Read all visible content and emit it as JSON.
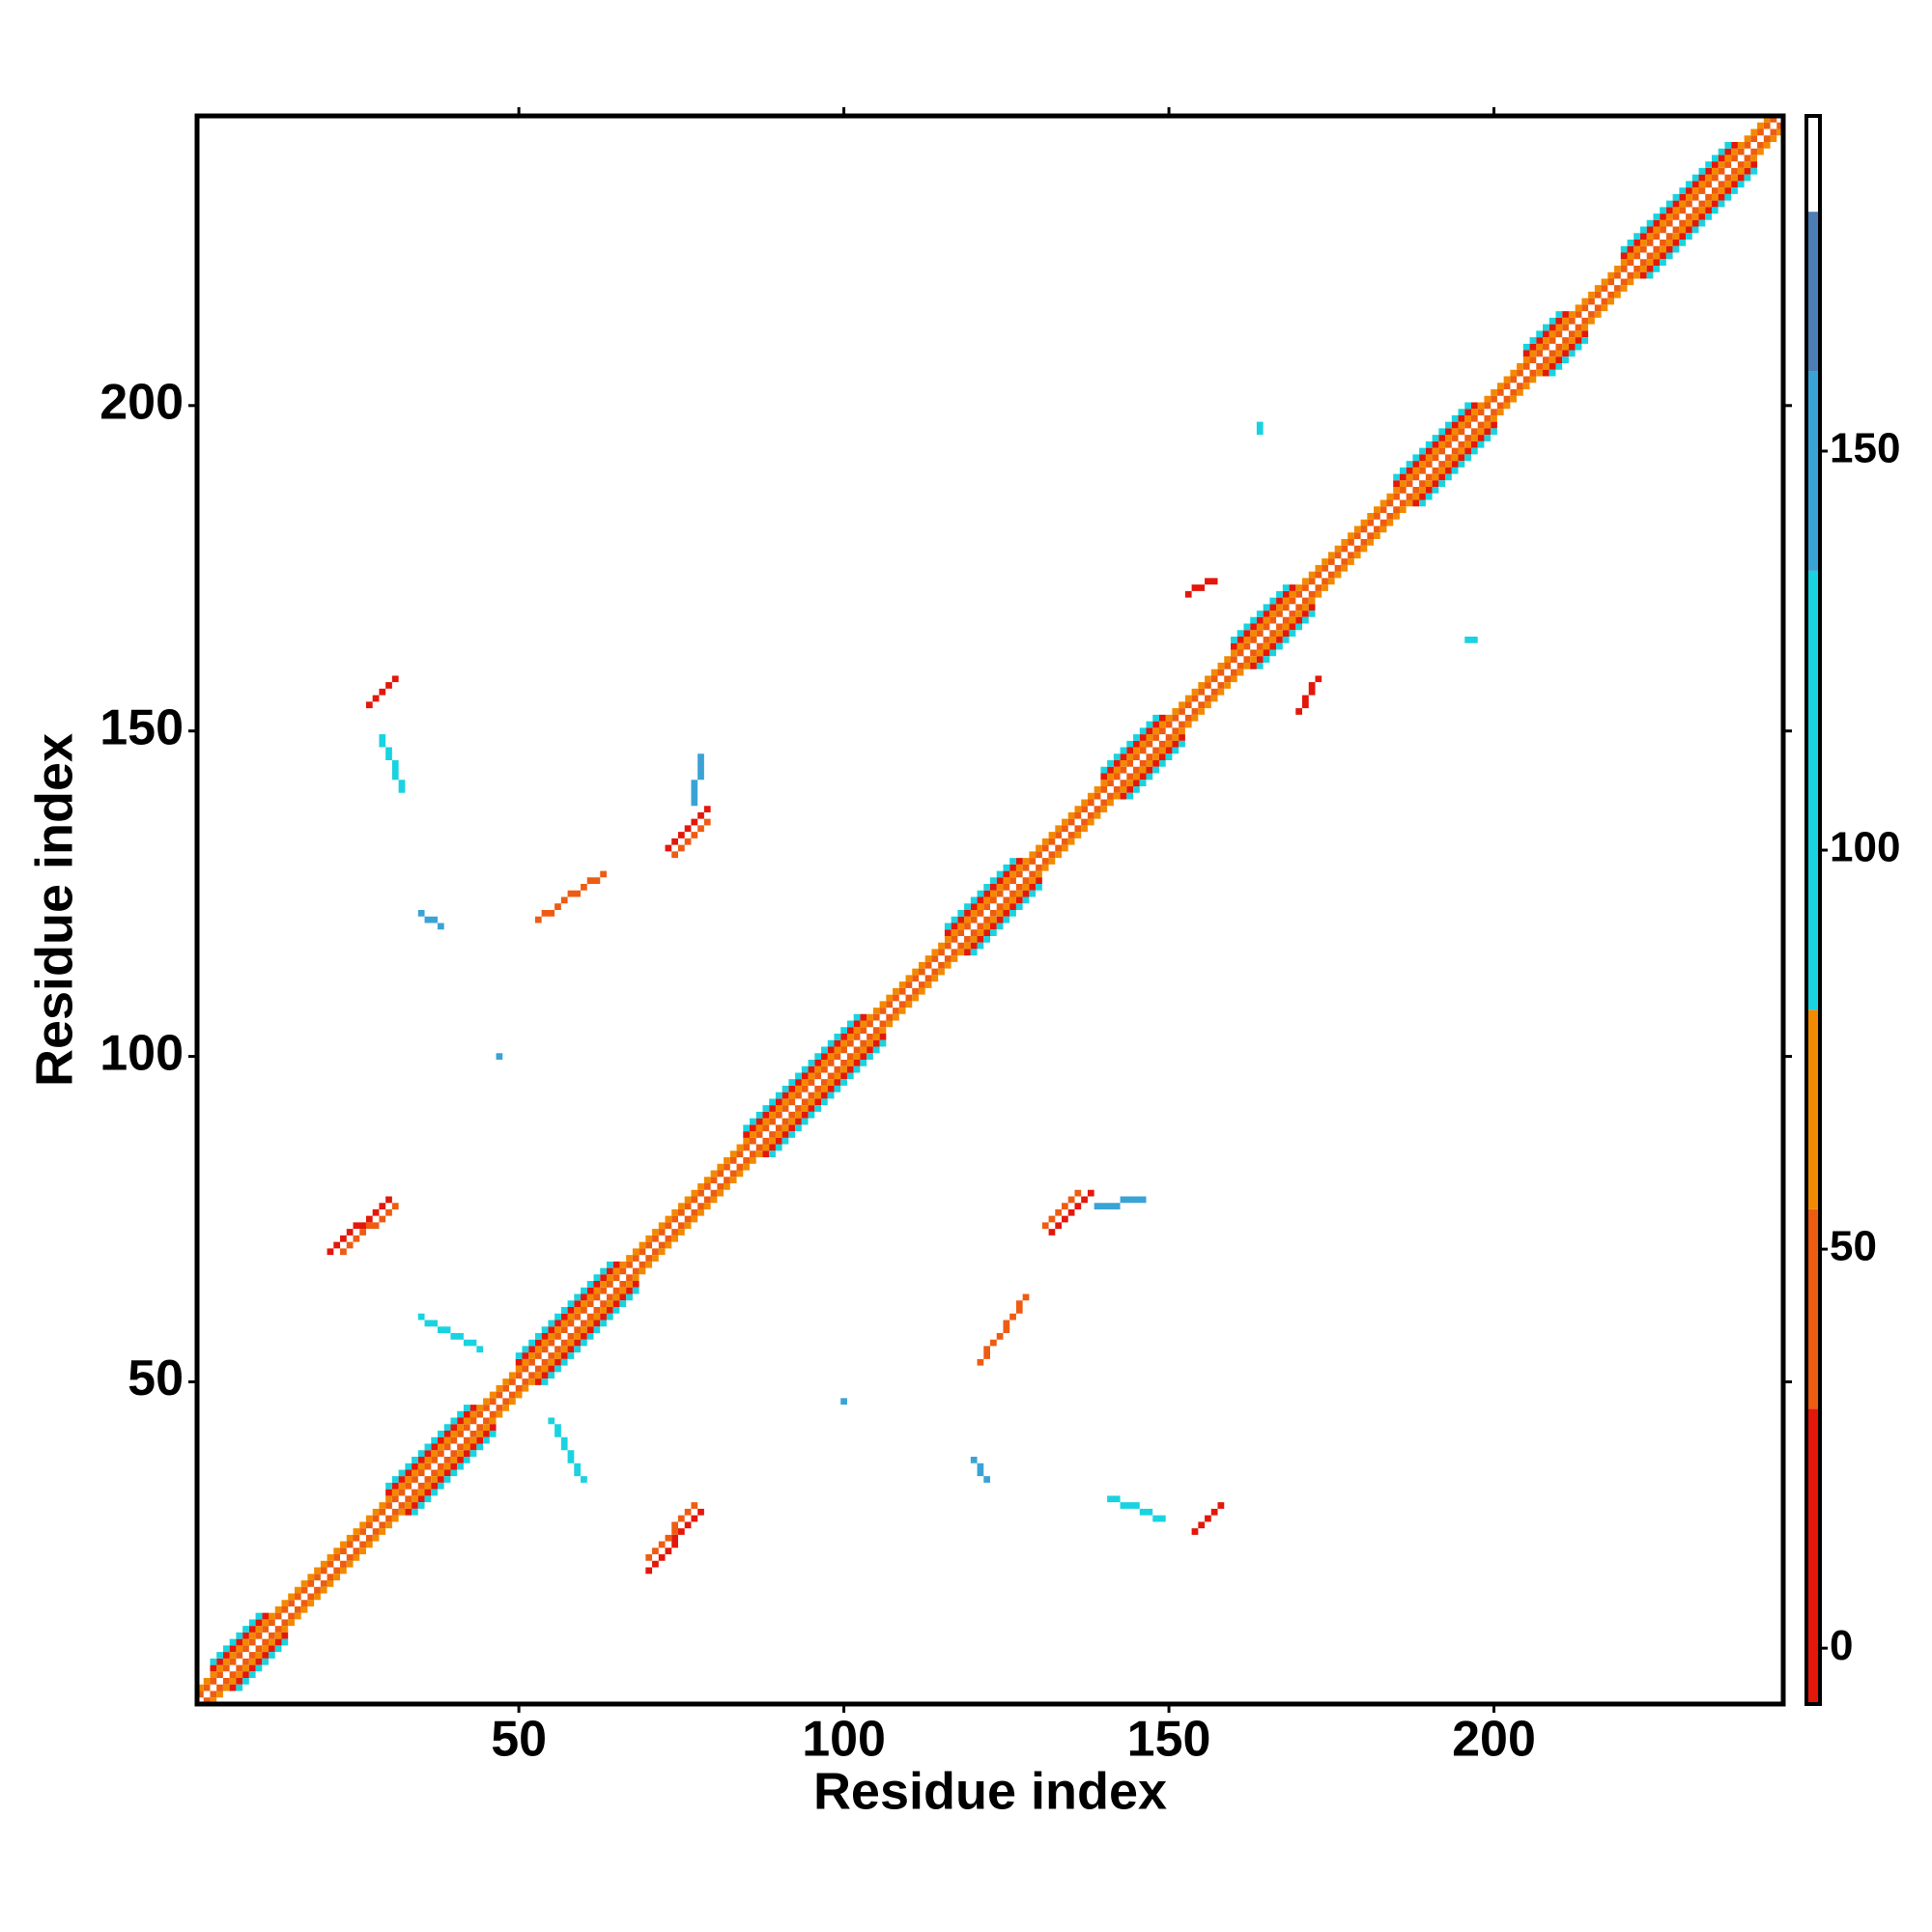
{
  "chart_data": {
    "type": "heatmap",
    "xlabel": "Residue index",
    "ylabel": "Residue index",
    "xlim": [
      0.5,
      244.5
    ],
    "ylim": [
      0.5,
      244.5
    ],
    "xticks": [
      50,
      100,
      150,
      200
    ],
    "yticks": [
      50,
      100,
      150,
      200
    ],
    "colorbar": {
      "lim": [
        -7,
        192
      ],
      "ticks": [
        0,
        50,
        100,
        150
      ],
      "bands": [
        {
          "from": -7,
          "to": 30,
          "color": "#e3170a"
        },
        {
          "from": 30,
          "to": 55,
          "color": "#ee5c12"
        },
        {
          "from": 55,
          "to": 80,
          "color": "#f28a00"
        },
        {
          "from": 80,
          "to": 135,
          "color": "#19d3e0"
        },
        {
          "from": 135,
          "to": 160,
          "color": "#3aa3d6"
        },
        {
          "from": 160,
          "to": 180,
          "color": "#4d7db5"
        },
        {
          "from": 180,
          "to": 192,
          "color": "#ffffff"
        }
      ]
    },
    "segments": [
      {
        "x": [
          1,
          243
        ],
        "y": [
          2,
          244
        ],
        "value": 45
      },
      {
        "x": [
          2,
          244
        ],
        "y": [
          1,
          243
        ],
        "value": 45
      },
      {
        "x": [
          1,
          242
        ],
        "y": [
          3,
          244
        ],
        "value": 65
      },
      {
        "x": [
          3,
          244
        ],
        "y": [
          1,
          242
        ],
        "value": 65
      },
      {
        "x": [
          3,
          11
        ],
        "y": [
          6,
          14
        ],
        "value": 20
      },
      {
        "x": [
          6,
          14
        ],
        "y": [
          3,
          11
        ],
        "value": 20
      },
      {
        "x": [
          3,
          10
        ],
        "y": [
          7,
          14
        ],
        "value": 110
      },
      {
        "x": [
          7,
          14
        ],
        "y": [
          3,
          10
        ],
        "value": 110
      },
      {
        "x": [
          30,
          43
        ],
        "y": [
          33,
          46
        ],
        "value": 20
      },
      {
        "x": [
          33,
          46
        ],
        "y": [
          30,
          43
        ],
        "value": 20
      },
      {
        "x": [
          30,
          42
        ],
        "y": [
          34,
          46
        ],
        "value": 110
      },
      {
        "x": [
          34,
          46
        ],
        "y": [
          30,
          42
        ],
        "value": 110
      },
      {
        "x": [
          50,
          65
        ],
        "y": [
          53,
          68
        ],
        "value": 20
      },
      {
        "x": [
          53,
          68
        ],
        "y": [
          50,
          65
        ],
        "value": 20
      },
      {
        "x": [
          50,
          64
        ],
        "y": [
          54,
          68
        ],
        "value": 110
      },
      {
        "x": [
          54,
          68
        ],
        "y": [
          50,
          64
        ],
        "value": 110
      },
      {
        "x": [
          85,
          103
        ],
        "y": [
          88,
          106
        ],
        "value": 20
      },
      {
        "x": [
          88,
          106
        ],
        "y": [
          85,
          103
        ],
        "value": 20
      },
      {
        "x": [
          85,
          102
        ],
        "y": [
          89,
          106
        ],
        "value": 110
      },
      {
        "x": [
          89,
          106
        ],
        "y": [
          85,
          102
        ],
        "value": 110
      },
      {
        "x": [
          116,
          127
        ],
        "y": [
          119,
          130
        ],
        "value": 20
      },
      {
        "x": [
          119,
          130
        ],
        "y": [
          116,
          127
        ],
        "value": 20
      },
      {
        "x": [
          116,
          126
        ],
        "y": [
          120,
          130
        ],
        "value": 110
      },
      {
        "x": [
          120,
          130
        ],
        "y": [
          116,
          126
        ],
        "value": 110
      },
      {
        "x": [
          140,
          149
        ],
        "y": [
          143,
          152
        ],
        "value": 20
      },
      {
        "x": [
          143,
          152
        ],
        "y": [
          140,
          149
        ],
        "value": 20
      },
      {
        "x": [
          140,
          148
        ],
        "y": [
          144,
          152
        ],
        "value": 110
      },
      {
        "x": [
          144,
          152
        ],
        "y": [
          140,
          148
        ],
        "value": 110
      },
      {
        "x": [
          160,
          169
        ],
        "y": [
          163,
          172
        ],
        "value": 20
      },
      {
        "x": [
          163,
          172
        ],
        "y": [
          160,
          169
        ],
        "value": 20
      },
      {
        "x": [
          160,
          168
        ],
        "y": [
          164,
          172
        ],
        "value": 110
      },
      {
        "x": [
          164,
          172
        ],
        "y": [
          160,
          168
        ],
        "value": 110
      },
      {
        "x": [
          185,
          197
        ],
        "y": [
          188,
          200
        ],
        "value": 20
      },
      {
        "x": [
          188,
          200
        ],
        "y": [
          185,
          197
        ],
        "value": 20
      },
      {
        "x": [
          185,
          196
        ],
        "y": [
          189,
          200
        ],
        "value": 110
      },
      {
        "x": [
          189,
          200
        ],
        "y": [
          185,
          196
        ],
        "value": 110
      },
      {
        "x": [
          205,
          211
        ],
        "y": [
          208,
          214
        ],
        "value": 20
      },
      {
        "x": [
          208,
          214
        ],
        "y": [
          205,
          211
        ],
        "value": 20
      },
      {
        "x": [
          205,
          210
        ],
        "y": [
          209,
          214
        ],
        "value": 110
      },
      {
        "x": [
          209,
          214
        ],
        "y": [
          205,
          210
        ],
        "value": 110
      },
      {
        "x": [
          220,
          237
        ],
        "y": [
          223,
          240
        ],
        "value": 20
      },
      {
        "x": [
          223,
          240
        ],
        "y": [
          220,
          237
        ],
        "value": 20
      },
      {
        "x": [
          220,
          236
        ],
        "y": [
          224,
          240
        ],
        "value": 110
      },
      {
        "x": [
          224,
          240
        ],
        "y": [
          220,
          236
        ],
        "value": 110
      },
      {
        "x": [
          27,
          31
        ],
        "y": [
          154,
          158
        ],
        "value": 10
      },
      {
        "x": [
          29,
          32
        ],
        "y": [
          149,
          141
        ],
        "value": 110
      },
      {
        "x": [
          154,
          158
        ],
        "y": [
          27,
          31
        ],
        "value": 10
      },
      {
        "x": [
          149,
          141
        ],
        "y": [
          29,
          32
        ],
        "value": 110
      },
      {
        "x": [
          21,
          30
        ],
        "y": [
          70,
          78
        ],
        "value": 10
      },
      {
        "x": [
          23,
          31
        ],
        "y": [
          70,
          77
        ],
        "value": 50
      },
      {
        "x": [
          70,
          78
        ],
        "y": [
          21,
          30
        ],
        "value": 10
      },
      {
        "x": [
          70,
          77
        ],
        "y": [
          23,
          31
        ],
        "value": 50
      },
      {
        "x": [
          73,
          79
        ],
        "y": [
          132,
          138
        ],
        "value": 10
      },
      {
        "x": [
          74,
          79
        ],
        "y": [
          131,
          136
        ],
        "value": 50
      },
      {
        "x": [
          77,
          78
        ],
        "y": [
          139,
          146
        ],
        "value": 140
      },
      {
        "x": [
          132,
          138
        ],
        "y": [
          73,
          79
        ],
        "value": 10
      },
      {
        "x": [
          131,
          136
        ],
        "y": [
          74,
          79
        ],
        "value": 50
      },
      {
        "x": [
          139,
          146
        ],
        "y": [
          77,
          78
        ],
        "value": 140
      },
      {
        "x": [
          153,
          157
        ],
        "y": [
          171,
          173
        ],
        "value": 10
      },
      {
        "x": [
          170,
          173
        ],
        "y": [
          153,
          158
        ],
        "value": 10
      },
      {
        "x": [
          53,
          63
        ],
        "y": [
          121,
          128
        ],
        "value": 50
      },
      {
        "x": [
          121,
          128
        ],
        "y": [
          53,
          63
        ],
        "value": 50
      },
      {
        "x": [
          35,
          44
        ],
        "y": [
          60,
          55
        ],
        "value": 100
      },
      {
        "x": [
          55,
          60
        ],
        "y": [
          44,
          35
        ],
        "value": 100
      },
      {
        "x": [
          164,
          164
        ],
        "y": [
          196,
          197
        ],
        "value": 110
      },
      {
        "x": [
          196,
          197
        ],
        "y": [
          164,
          164
        ],
        "value": 110
      },
      {
        "x": [
          47,
          47
        ],
        "y": [
          100,
          100
        ],
        "value": 150
      },
      {
        "x": [
          100,
          100
        ],
        "y": [
          47,
          47
        ],
        "value": 150
      },
      {
        "x": [
          35,
          38
        ],
        "y": [
          122,
          120
        ],
        "value": 150
      },
      {
        "x": [
          122,
          120
        ],
        "y": [
          35,
          38
        ],
        "value": 150
      }
    ]
  }
}
